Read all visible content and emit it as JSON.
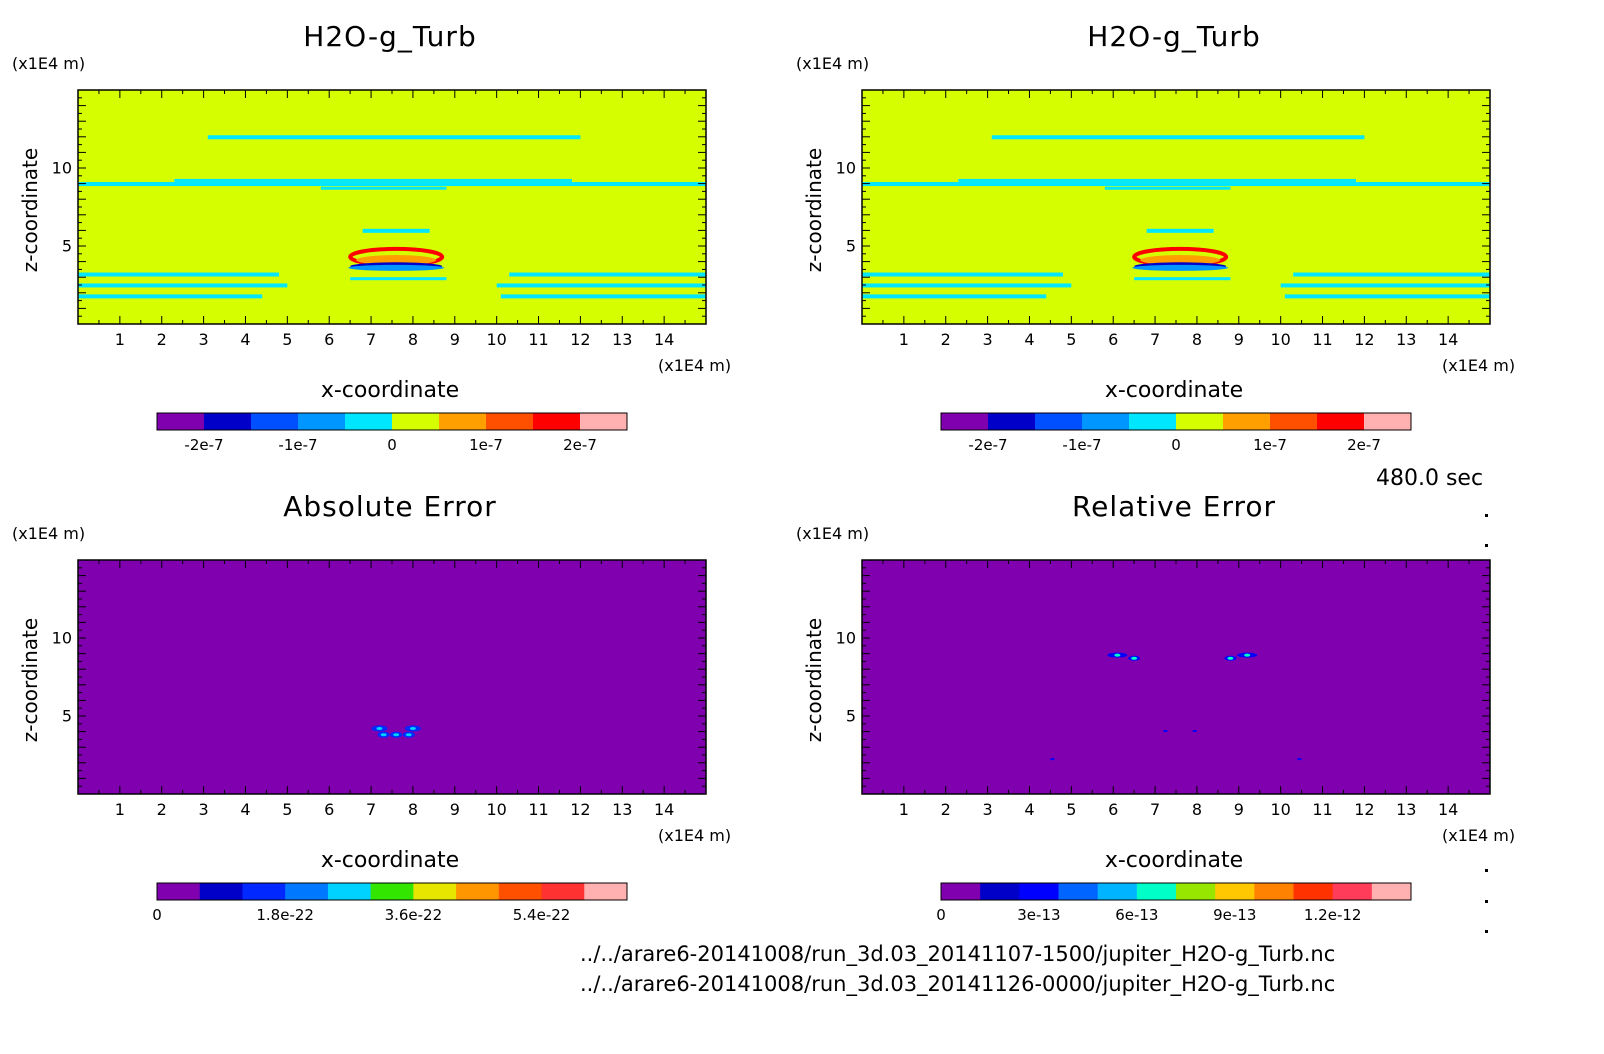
{
  "timestamp": "480.0 sec",
  "files": [
    "../../arare6-20141008/run_3d.03_20141107-1500/jupiter_H2O-g_Turb.nc",
    "../../arare6-20141008/run_3d.03_20141126-0000/jupiter_H2O-g_Turb.nc"
  ],
  "colors": {
    "background_field": "#d5ff00",
    "error_field": "#8000b0"
  },
  "chart_data": [
    {
      "type": "heatmap",
      "title": "H2O-g_Turb",
      "xlabel": "x-coordinate",
      "ylabel": "z-coordinate",
      "x_unit": "(x1E4 m)",
      "y_unit": "(x1E4 m)",
      "xlim": [
        0,
        15
      ],
      "ylim": [
        0,
        15
      ],
      "xticks": [
        "1",
        "2",
        "3",
        "4",
        "5",
        "6",
        "7",
        "8",
        "9",
        "10",
        "11",
        "12",
        "13",
        "14"
      ],
      "yticks": [
        "5",
        "10"
      ],
      "colorbar": {
        "colors": [
          "#8000b0",
          "#0000c8",
          "#0050ff",
          "#0096ff",
          "#00e6ff",
          "#d5ff00",
          "#ffa000",
          "#ff5000",
          "#ff0000",
          "#ffb0b0"
        ],
        "labels": [
          "-2e-7",
          "-1e-7",
          "0",
          "1e-7",
          "2e-7"
        ]
      }
    },
    {
      "type": "heatmap",
      "title": "H2O-g_Turb",
      "xlabel": "x-coordinate",
      "ylabel": "z-coordinate",
      "x_unit": "(x1E4 m)",
      "y_unit": "(x1E4 m)",
      "xlim": [
        0,
        15
      ],
      "ylim": [
        0,
        15
      ],
      "xticks": [
        "1",
        "2",
        "3",
        "4",
        "5",
        "6",
        "7",
        "8",
        "9",
        "10",
        "11",
        "12",
        "13",
        "14"
      ],
      "yticks": [
        "5",
        "10"
      ],
      "colorbar": {
        "colors": [
          "#8000b0",
          "#0000c8",
          "#0050ff",
          "#0096ff",
          "#00e6ff",
          "#d5ff00",
          "#ffa000",
          "#ff5000",
          "#ff0000",
          "#ffb0b0"
        ],
        "labels": [
          "-2e-7",
          "-1e-7",
          "0",
          "1e-7",
          "2e-7"
        ]
      }
    },
    {
      "type": "heatmap",
      "title": "Absolute Error",
      "xlabel": "x-coordinate",
      "ylabel": "z-coordinate",
      "x_unit": "(x1E4 m)",
      "y_unit": "(x1E4 m)",
      "xlim": [
        0,
        15
      ],
      "ylim": [
        0,
        15
      ],
      "xticks": [
        "1",
        "2",
        "3",
        "4",
        "5",
        "6",
        "7",
        "8",
        "9",
        "10",
        "11",
        "12",
        "13",
        "14"
      ],
      "yticks": [
        "5",
        "10"
      ],
      "colorbar": {
        "colors": [
          "#8000b0",
          "#0000c8",
          "#0028ff",
          "#0078ff",
          "#00d2ff",
          "#32e600",
          "#e6e600",
          "#ff9600",
          "#ff5000",
          "#ff3232",
          "#ffb0b0"
        ],
        "labels": [
          "0",
          "1.8e-22",
          "3.6e-22",
          "5.4e-22"
        ]
      }
    },
    {
      "type": "heatmap",
      "title": "Relative Error",
      "xlabel": "x-coordinate",
      "ylabel": "z-coordinate",
      "x_unit": "(x1E4 m)",
      "y_unit": "(x1E4 m)",
      "xlim": [
        0,
        15
      ],
      "ylim": [
        0,
        15
      ],
      "xticks": [
        "1",
        "2",
        "3",
        "4",
        "5",
        "6",
        "7",
        "8",
        "9",
        "10",
        "11",
        "12",
        "13",
        "14"
      ],
      "yticks": [
        "5",
        "10"
      ],
      "colorbar": {
        "colors": [
          "#8000b0",
          "#0000c8",
          "#0000ff",
          "#0064ff",
          "#00b4ff",
          "#00ffc8",
          "#96e600",
          "#ffc800",
          "#ff8200",
          "#ff3200",
          "#ff3c5a",
          "#ffb0b0"
        ],
        "labels": [
          "0",
          "3e-13",
          "6e-13",
          "9e-13",
          "1.2e-12"
        ]
      }
    }
  ]
}
